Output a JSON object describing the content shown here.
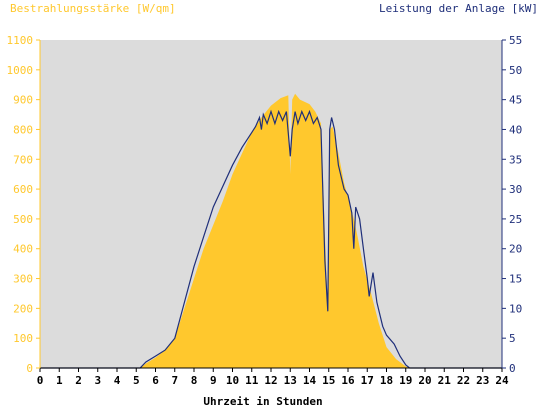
{
  "colors": {
    "background": "#ffffff",
    "plot_bg": "#dcdcdc",
    "irradiance": "#ffc82d",
    "irradiance_text": "#ffc82d",
    "power_line": "#1f2f7a",
    "power_text": "#1f2f7a",
    "axis_text": "#000000"
  },
  "chart_data": {
    "type": "area",
    "title_left": "Bestrahlungsstärke [W/qm]",
    "title_right": "Leistung der Anlage [kW]",
    "xlabel": "Uhrzeit in Stunden",
    "x_ticks": [
      "0",
      "1",
      "2",
      "3",
      "4",
      "5",
      "6",
      "7",
      "8",
      "9",
      "10",
      "11",
      "12",
      "13",
      "14",
      "15",
      "16",
      "17",
      "18",
      "19",
      "20",
      "21",
      "22",
      "23",
      "24"
    ],
    "y_left_ticks": [
      "0",
      "100",
      "200",
      "300",
      "400",
      "500",
      "600",
      "700",
      "800",
      "900",
      "1000",
      "1100"
    ],
    "y_right_ticks": [
      "0",
      "5",
      "10",
      "15",
      "20",
      "25",
      "30",
      "35",
      "40",
      "45",
      "50",
      "55"
    ],
    "xlim": [
      0,
      24
    ],
    "ylim_left": [
      0,
      1100
    ],
    "ylim_right": [
      0,
      55
    ],
    "grid": false,
    "series": [
      {
        "name": "Bestrahlungsstärke [W/qm]",
        "axis": "left",
        "style": "area",
        "points": [
          [
            0,
            0
          ],
          [
            5.2,
            0
          ],
          [
            5.5,
            15
          ],
          [
            6,
            35
          ],
          [
            6.5,
            60
          ],
          [
            7,
            100
          ],
          [
            7.5,
            200
          ],
          [
            8,
            300
          ],
          [
            8.5,
            400
          ],
          [
            9,
            480
          ],
          [
            9.5,
            560
          ],
          [
            10,
            650
          ],
          [
            10.5,
            720
          ],
          [
            11,
            790
          ],
          [
            11.5,
            840
          ],
          [
            12,
            880
          ],
          [
            12.5,
            905
          ],
          [
            12.9,
            915
          ],
          [
            13.0,
            650
          ],
          [
            13.1,
            900
          ],
          [
            13.25,
            920
          ],
          [
            13.5,
            900
          ],
          [
            14,
            885
          ],
          [
            14.3,
            860
          ],
          [
            14.6,
            820
          ],
          [
            14.8,
            450
          ],
          [
            14.95,
            200
          ],
          [
            15.05,
            800
          ],
          [
            15.2,
            810
          ],
          [
            15.5,
            720
          ],
          [
            15.8,
            620
          ],
          [
            16.1,
            550
          ],
          [
            16.3,
            500
          ],
          [
            16.5,
            440
          ],
          [
            16.8,
            340
          ],
          [
            17.2,
            250
          ],
          [
            17.6,
            150
          ],
          [
            18,
            70
          ],
          [
            18.5,
            30
          ],
          [
            19,
            5
          ],
          [
            19.2,
            0
          ],
          [
            24,
            0
          ]
        ]
      },
      {
        "name": "Leistung der Anlage [kW]",
        "axis": "right",
        "style": "line",
        "points": [
          [
            0,
            0
          ],
          [
            5.2,
            0
          ],
          [
            5.5,
            1
          ],
          [
            6,
            2
          ],
          [
            6.5,
            3
          ],
          [
            7,
            5
          ],
          [
            7.5,
            11
          ],
          [
            8,
            17
          ],
          [
            8.5,
            22
          ],
          [
            9,
            27
          ],
          [
            9.5,
            30.5
          ],
          [
            10,
            34
          ],
          [
            10.5,
            37
          ],
          [
            11,
            39.5
          ],
          [
            11.2,
            40.5
          ],
          [
            11.4,
            42
          ],
          [
            11.5,
            40
          ],
          [
            11.6,
            42.5
          ],
          [
            11.8,
            41
          ],
          [
            12,
            43
          ],
          [
            12.2,
            41
          ],
          [
            12.4,
            43
          ],
          [
            12.6,
            41.5
          ],
          [
            12.8,
            43
          ],
          [
            13.0,
            35.5
          ],
          [
            13.1,
            40
          ],
          [
            13.25,
            43
          ],
          [
            13.4,
            41
          ],
          [
            13.6,
            43
          ],
          [
            13.8,
            41.5
          ],
          [
            14,
            43
          ],
          [
            14.2,
            41
          ],
          [
            14.4,
            42
          ],
          [
            14.6,
            40
          ],
          [
            14.8,
            18
          ],
          [
            14.95,
            9.5
          ],
          [
            15.05,
            40
          ],
          [
            15.15,
            42
          ],
          [
            15.3,
            40
          ],
          [
            15.5,
            34
          ],
          [
            15.8,
            30
          ],
          [
            16,
            29
          ],
          [
            16.2,
            26
          ],
          [
            16.3,
            20
          ],
          [
            16.4,
            27
          ],
          [
            16.6,
            25
          ],
          [
            16.8,
            20
          ],
          [
            17,
            15
          ],
          [
            17.1,
            12
          ],
          [
            17.3,
            16
          ],
          [
            17.5,
            11
          ],
          [
            17.8,
            7
          ],
          [
            18,
            5.5
          ],
          [
            18.4,
            4
          ],
          [
            18.7,
            2
          ],
          [
            19,
            0.5
          ],
          [
            19.2,
            0
          ],
          [
            22.5,
            0
          ],
          [
            22.6,
            0
          ],
          [
            24,
            0
          ]
        ]
      }
    ]
  }
}
